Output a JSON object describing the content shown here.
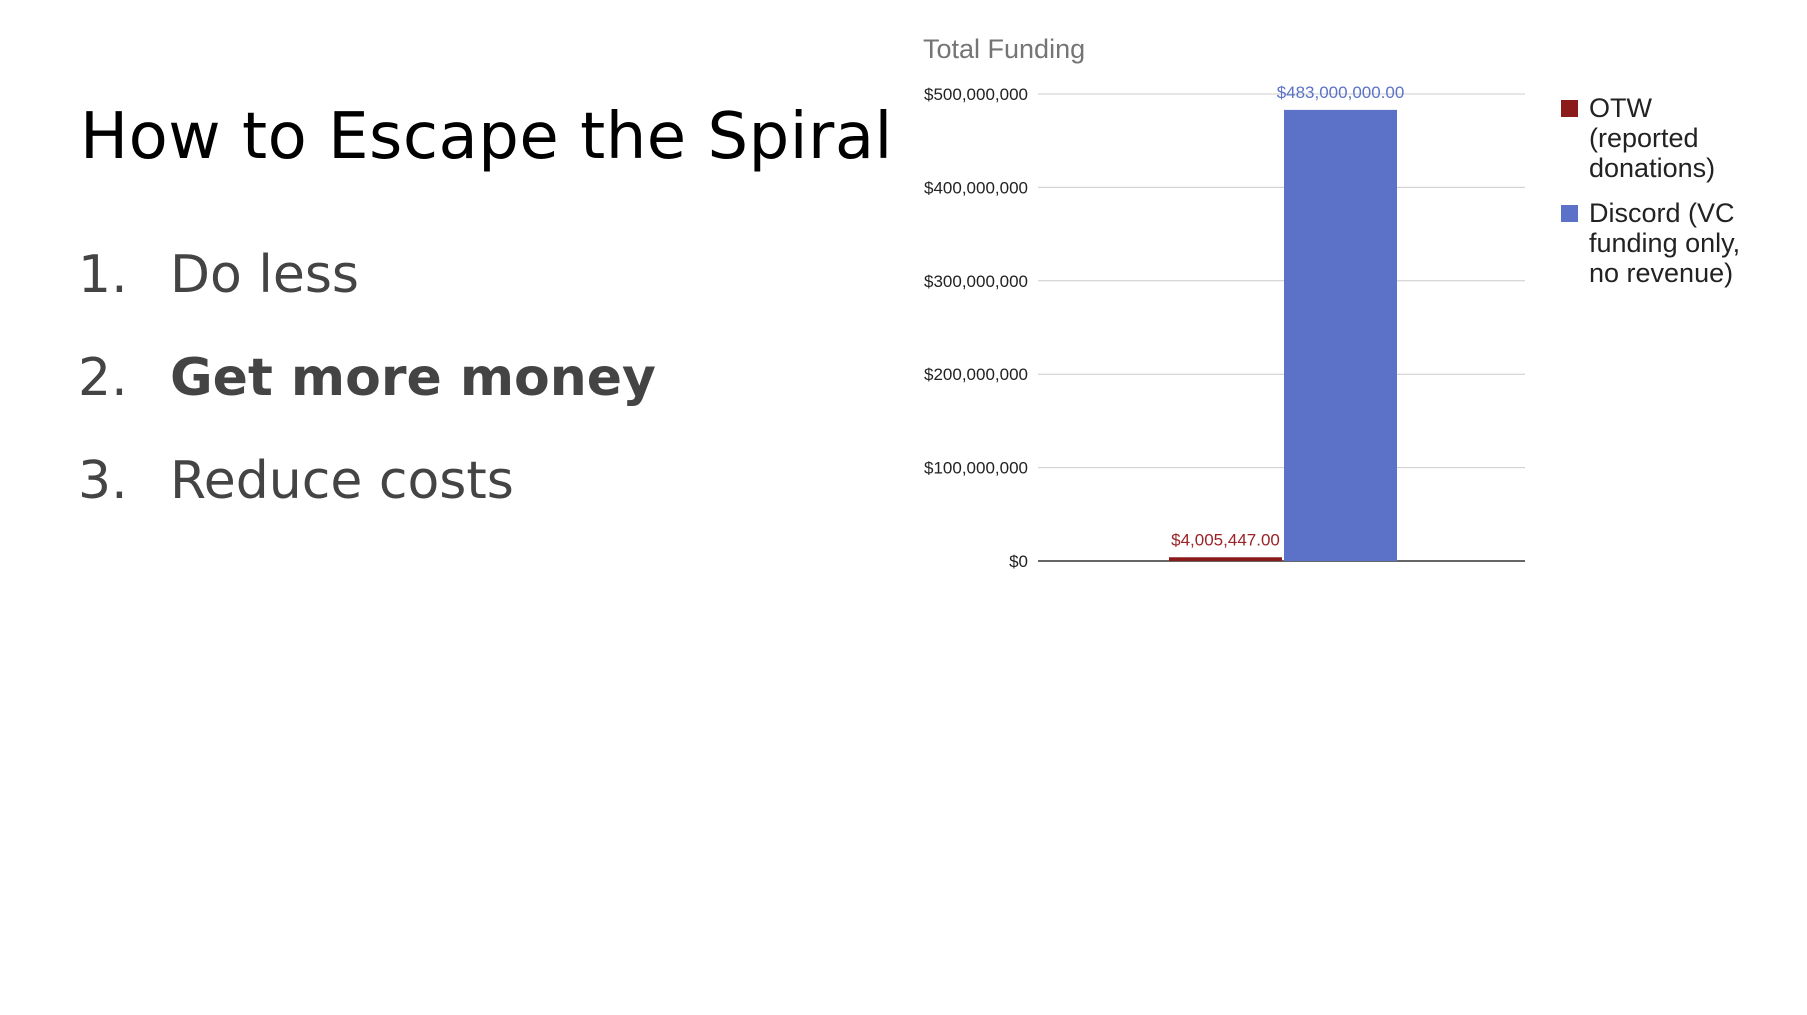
{
  "slide": {
    "title": "How to Escape the Spiral",
    "points": [
      {
        "number": "1.",
        "text": "Do less",
        "bold": false
      },
      {
        "number": "2.",
        "text": "Get more money",
        "bold": true
      },
      {
        "number": "3.",
        "text": "Reduce costs",
        "bold": false
      }
    ]
  },
  "chart_data": {
    "type": "bar",
    "title": "Total Funding",
    "xlabel": "",
    "ylabel": "",
    "ylim": [
      0,
      500000000
    ],
    "yticks": [
      0,
      100000000,
      200000000,
      300000000,
      400000000,
      500000000
    ],
    "ytick_labels": [
      "$0",
      "$100,000,000",
      "$200,000,000",
      "$300,000,000",
      "$400,000,000",
      "$500,000,000"
    ],
    "grid": true,
    "legend_position": "right",
    "series": [
      {
        "name": "OTW (reported donations)",
        "value": 4005447,
        "label": "$4,005,447.00",
        "color": "#8b1a1a",
        "label_color": "#9b2226"
      },
      {
        "name": "Discord (VC funding only, no revenue)",
        "value": 483000000,
        "label": "$483,000,000.00",
        "color": "#5b72c8",
        "label_color": "#5b72c8"
      }
    ],
    "legend_lines": [
      [
        "OTW",
        "(reported",
        "donations)"
      ],
      [
        "Discord (VC",
        "funding only,",
        "no revenue)"
      ]
    ]
  }
}
